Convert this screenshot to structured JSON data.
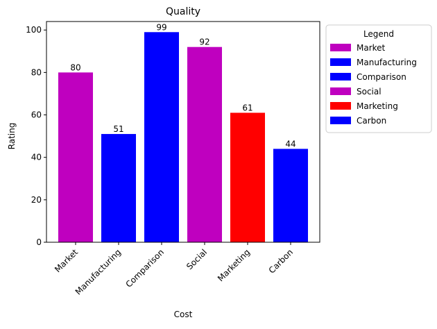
{
  "chart_data": {
    "type": "bar",
    "title": "Quality",
    "xlabel": "Cost",
    "ylabel": "Rating",
    "categories": [
      "Market",
      "Manufacturing",
      "Comparison",
      "Social",
      "Marketing",
      "Carbon"
    ],
    "values": [
      80,
      51,
      99,
      92,
      61,
      44
    ],
    "bar_colors": [
      "#bf00bf",
      "#0000ff",
      "#0000ff",
      "#bf00bf",
      "#ff0000",
      "#0000ff"
    ],
    "ylim": [
      0,
      104
    ],
    "yticks": [
      0,
      20,
      40,
      60,
      80,
      100
    ],
    "grid": false,
    "legend": {
      "title": "Legend",
      "placement": "outside-upper-right",
      "entries": [
        {
          "label": "Market",
          "color": "#bf00bf"
        },
        {
          "label": "Manufacturing",
          "color": "#0000ff"
        },
        {
          "label": "Comparison",
          "color": "#0000ff"
        },
        {
          "label": "Social",
          "color": "#bf00bf"
        },
        {
          "label": "Marketing",
          "color": "#ff0000"
        },
        {
          "label": "Carbon",
          "color": "#0000ff"
        }
      ]
    }
  }
}
